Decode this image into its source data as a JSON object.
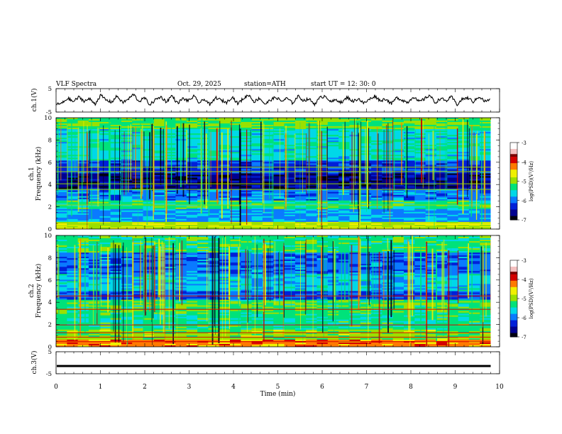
{
  "header": {
    "title": "VLF  Spectra",
    "date": "Oct. 29, 2025",
    "station": "station=ATH",
    "start": "start  UT  =    12: 30: 0"
  },
  "colors": {
    "colormap": [
      "#7a0000",
      "#d40000",
      "#ff7a00",
      "#f0f000",
      "#9be000",
      "#00e27a",
      "#00d8e8",
      "#0a7aff",
      "#0020d8",
      "#000090",
      "#000010"
    ],
    "trace": "#000000",
    "frame": "#000000"
  },
  "chart_data": [
    {
      "type": "line",
      "panel": "ch1",
      "ylabel": "ch.1(V)",
      "ylim": [
        -5,
        5
      ],
      "yticks": [
        "5",
        "-5"
      ],
      "description_values_V": [
        -1.8,
        -1.2,
        0.9,
        -0.6,
        1.4,
        -0.3,
        0.6,
        -1.5,
        2.2,
        0.1,
        -0.8,
        1.9,
        -1.0,
        0.4,
        2.6,
        -0.5,
        1.1,
        -1.9,
        0.3,
        1.5,
        -0.7,
        2.1,
        -1.3,
        0.8,
        -0.2,
        1.7,
        -1.1,
        0.5,
        -2.0,
        1.2,
        0.0,
        -0.9,
        1.6,
        -1.4,
        0.7,
        2.4,
        -0.6,
        1.0,
        -1.7,
        0.2,
        1.3,
        -0.4,
        0.9,
        -1.2,
        1.8,
        -0.1,
        0.6,
        -1.6,
        1.1,
        2.0,
        -0.8,
        0.3,
        -1.0,
        1.4,
        -0.5,
        0.8,
        -1.3,
        0.4,
        1.9,
        -0.2,
        0.7,
        -1.5,
        1.2,
        0.1,
        -0.9,
        1.6,
        -0.6,
        0.5,
        2.3,
        -1.1,
        0.9,
        -0.3,
        1.5,
        -1.8,
        0.6,
        1.0,
        -0.7,
        1.7,
        -0.4,
        0.2
      ]
    },
    {
      "type": "heatmap",
      "panel": "ch1-spectrogram",
      "ylabel": "ch.1\nFrequency (kHz)",
      "ylim": [
        0,
        10
      ],
      "yticks": [
        "0",
        "2",
        "4",
        "6",
        "8",
        "10"
      ],
      "colorbar_label": "log(PSD)(V²/Hz)",
      "colorbar_ticks": [
        "-3",
        "-4",
        "-5",
        "-6",
        "-7"
      ],
      "clim": [
        -7,
        -3
      ]
    },
    {
      "type": "heatmap",
      "panel": "ch2-spectrogram",
      "ylabel": "ch.2\nFrequency (kHz)",
      "ylim": [
        0,
        10
      ],
      "yticks": [
        "0",
        "2",
        "4",
        "6",
        "8",
        "10"
      ],
      "colorbar_label": "log(PSD)(V²/Hz)",
      "colorbar_ticks": [
        "-3",
        "-4",
        "-5",
        "-6",
        "-7"
      ],
      "clim": [
        -7,
        -3
      ]
    },
    {
      "type": "line",
      "panel": "ch3",
      "ylabel": "ch.3(V)",
      "ylim": [
        -5,
        5
      ],
      "yticks": [
        "5",
        "-5"
      ],
      "constant_value_V": -1.5
    }
  ],
  "xaxis": {
    "label": "Time  (min)",
    "xlim": [
      0,
      10
    ],
    "ticks": [
      "0",
      "1",
      "2",
      "3",
      "4",
      "5",
      "6",
      "7",
      "8",
      "9",
      "10"
    ],
    "data_end_min": 9.8
  }
}
